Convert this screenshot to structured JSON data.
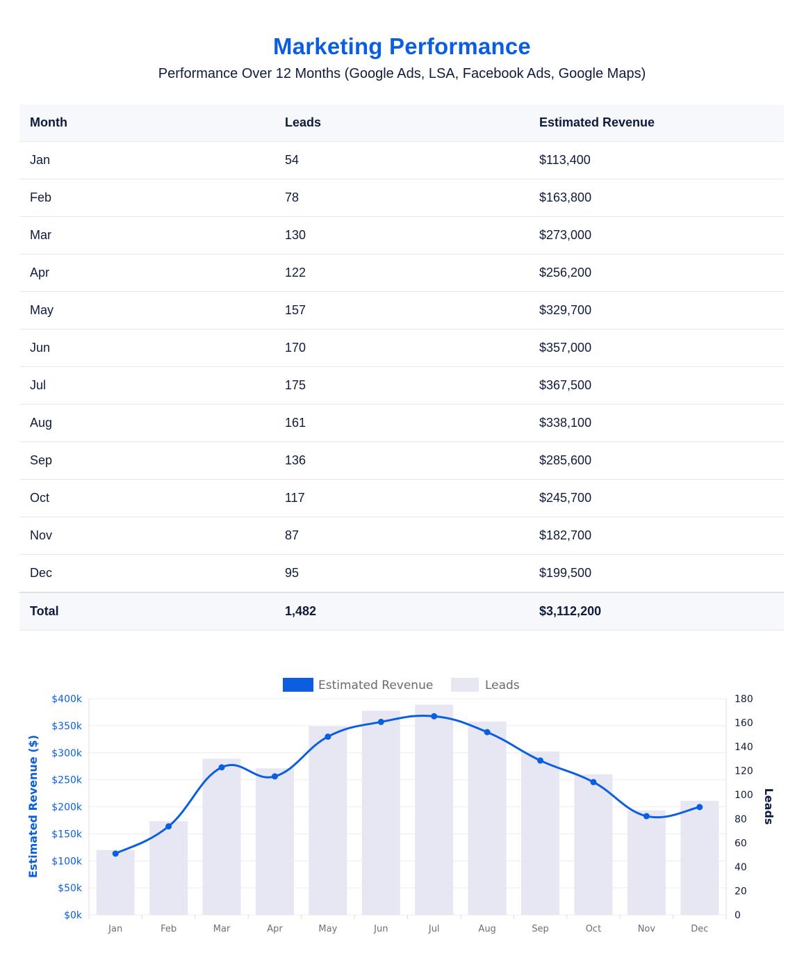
{
  "header": {
    "title": "Marketing Performance",
    "subtitle": "Performance Over 12 Months (Google Ads, LSA, Facebook Ads, Google Maps)"
  },
  "table": {
    "columns": [
      "Month",
      "Leads",
      "Estimated Revenue"
    ],
    "rows": [
      [
        "Jan",
        "54",
        "$113,400"
      ],
      [
        "Feb",
        "78",
        "$163,800"
      ],
      [
        "Mar",
        "130",
        "$273,000"
      ],
      [
        "Apr",
        "122",
        "$256,200"
      ],
      [
        "May",
        "157",
        "$329,700"
      ],
      [
        "Jun",
        "170",
        "$357,000"
      ],
      [
        "Jul",
        "175",
        "$367,500"
      ],
      [
        "Aug",
        "161",
        "$338,100"
      ],
      [
        "Sep",
        "136",
        "$285,600"
      ],
      [
        "Oct",
        "117",
        "$245,700"
      ],
      [
        "Nov",
        "87",
        "$182,700"
      ],
      [
        "Dec",
        "95",
        "$199,500"
      ]
    ],
    "total": [
      "Total",
      "1,482",
      "$3,112,200"
    ]
  },
  "chart_data": {
    "type": "bar",
    "categories": [
      "Jan",
      "Feb",
      "Mar",
      "Apr",
      "May",
      "Jun",
      "Jul",
      "Aug",
      "Sep",
      "Oct",
      "Nov",
      "Dec"
    ],
    "series": [
      {
        "name": "Estimated Revenue",
        "type": "line",
        "axis": "left",
        "values": [
          113400,
          163800,
          273000,
          256200,
          329700,
          357000,
          367500,
          338100,
          285600,
          245700,
          182700,
          199500
        ],
        "color": "#0b5ee0"
      },
      {
        "name": "Leads",
        "type": "bar",
        "axis": "right",
        "values": [
          54,
          78,
          130,
          122,
          157,
          170,
          175,
          161,
          136,
          117,
          87,
          95
        ],
        "color": "#e6e7f2"
      }
    ],
    "y_left": {
      "label": "Estimated Revenue ($)",
      "range": [
        0,
        400000
      ],
      "ticks": [
        "$0k",
        "$50k",
        "$100k",
        "$150k",
        "$200k",
        "$250k",
        "$300k",
        "$350k",
        "$400k"
      ],
      "color": "#0b5ee0"
    },
    "y_right": {
      "label": "Leads",
      "range": [
        0,
        180
      ],
      "ticks": [
        "0",
        "20",
        "40",
        "60",
        "80",
        "100",
        "120",
        "140",
        "160",
        "180"
      ]
    },
    "legend": "top-center",
    "grid": true
  }
}
